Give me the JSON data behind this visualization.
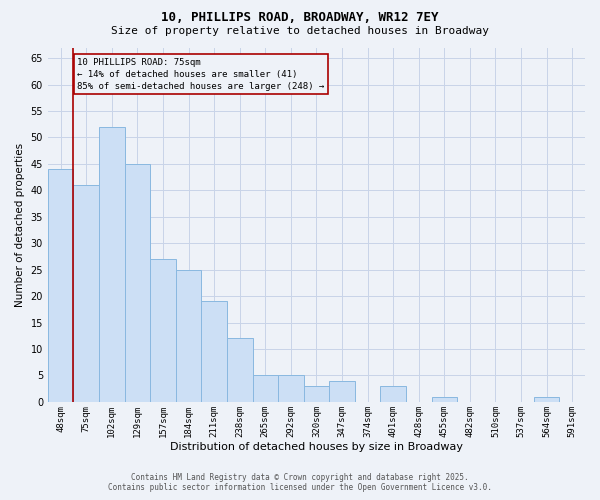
{
  "title_line1": "10, PHILLIPS ROAD, BROADWAY, WR12 7EY",
  "title_line2": "Size of property relative to detached houses in Broadway",
  "xlabel": "Distribution of detached houses by size in Broadway",
  "ylabel": "Number of detached properties",
  "footer_line1": "Contains HM Land Registry data © Crown copyright and database right 2025.",
  "footer_line2": "Contains public sector information licensed under the Open Government Licence v3.0.",
  "annotation_line1": "10 PHILLIPS ROAD: 75sqm",
  "annotation_line2": "← 14% of detached houses are smaller (41)",
  "annotation_line3": "85% of semi-detached houses are larger (248) →",
  "subject_bin_index": 1,
  "bins": [
    "48sqm",
    "75sqm",
    "102sqm",
    "129sqm",
    "157sqm",
    "184sqm",
    "211sqm",
    "238sqm",
    "265sqm",
    "292sqm",
    "320sqm",
    "347sqm",
    "374sqm",
    "401sqm",
    "428sqm",
    "455sqm",
    "482sqm",
    "510sqm",
    "537sqm",
    "564sqm",
    "591sqm"
  ],
  "values": [
    44,
    41,
    52,
    45,
    27,
    25,
    19,
    12,
    5,
    5,
    3,
    4,
    0,
    3,
    0,
    1,
    0,
    0,
    0,
    1,
    0
  ],
  "bar_color": "#ccdff5",
  "bar_edge_color": "#89b8e0",
  "red_line_color": "#aa0000",
  "annotation_box_edge_color": "#aa0000",
  "grid_color": "#c8d4e8",
  "background_color": "#eef2f8",
  "ylim_max": 67,
  "yticks": [
    0,
    5,
    10,
    15,
    20,
    25,
    30,
    35,
    40,
    45,
    50,
    55,
    60,
    65
  ]
}
